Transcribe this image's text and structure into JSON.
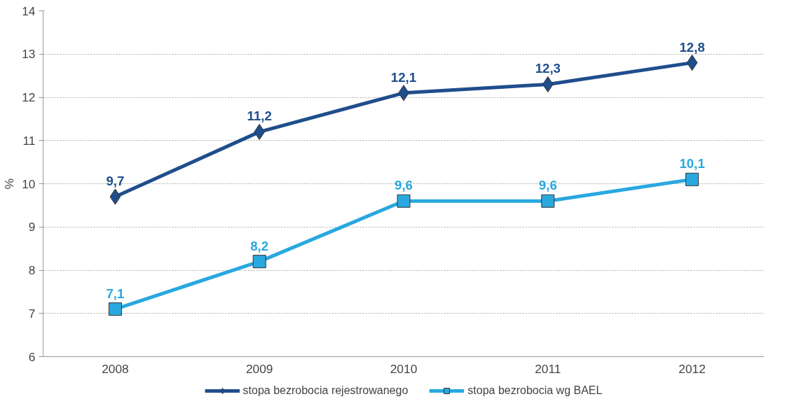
{
  "chart_data": {
    "type": "line",
    "ylabel": "%",
    "categories": [
      "2008",
      "2009",
      "2010",
      "2011",
      "2012"
    ],
    "series": [
      {
        "name": "stopa bezrobocia rejestrowanego",
        "color": "#1f4e8c",
        "marker": "diamond",
        "values": [
          9.7,
          11.2,
          12.1,
          12.3,
          12.8
        ],
        "value_labels": [
          "9,7",
          "11,2",
          "12,1",
          "12,3",
          "12,8"
        ]
      },
      {
        "name": "stopa bezrobocia wg BAEL",
        "color": "#29a8e0",
        "marker": "square",
        "values": [
          7.1,
          8.2,
          9.6,
          9.6,
          10.1
        ],
        "value_labels": [
          "7,1",
          "8,2",
          "9,6",
          "9,6",
          "10,1"
        ]
      }
    ],
    "ylim": [
      6,
      14
    ],
    "yticks": [
      6,
      7,
      8,
      9,
      10,
      11,
      12,
      13,
      14
    ],
    "grid": "y",
    "legend": "bottom",
    "line_style": "solid"
  }
}
